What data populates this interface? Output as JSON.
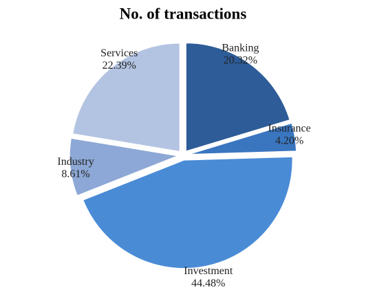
{
  "chart_data": {
    "type": "pie",
    "title": "No. of transactions",
    "categories": [
      "Banking",
      "Insurance",
      "Investment",
      "Industry",
      "Services"
    ],
    "values": [
      20.32,
      4.2,
      44.48,
      8.61,
      22.39
    ],
    "value_labels": [
      "20.32%",
      "4.20%",
      "44.48%",
      "8.61%",
      "22.39%"
    ],
    "colors": [
      "#2d5c98",
      "#3a76c0",
      "#4a8bd6",
      "#8da8d6",
      "#b3c3e2"
    ]
  }
}
